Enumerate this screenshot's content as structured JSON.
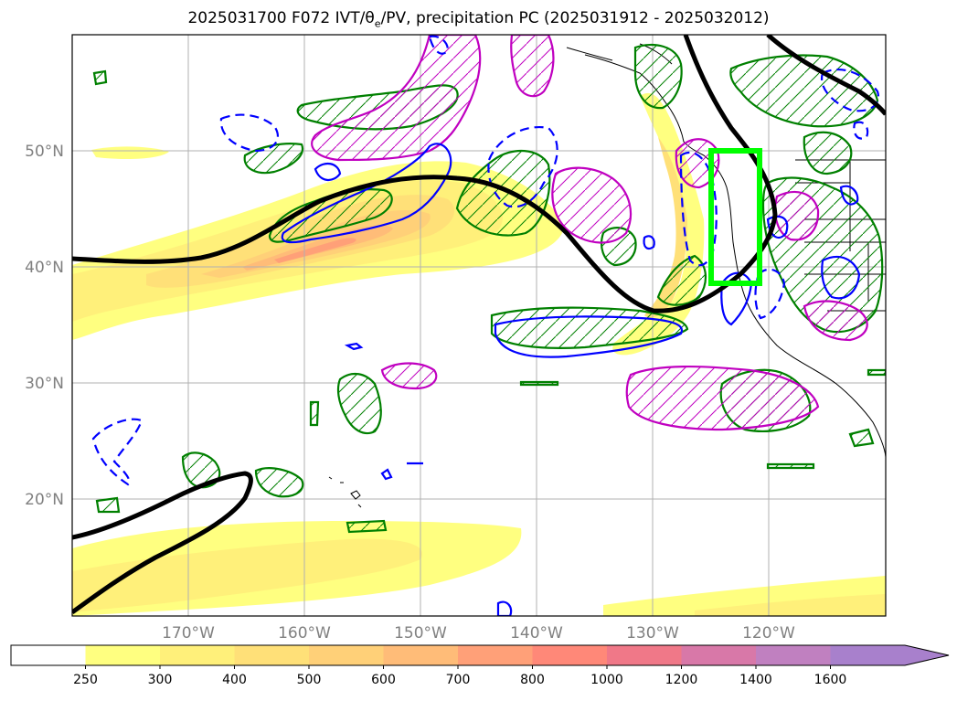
{
  "title": {
    "prefix": "2025031700 F072 IVT/",
    "theta_base": "θ",
    "theta_sub": "e",
    "suffix": "/PV, precipitation PC (2025031912 - 2025032012)"
  },
  "map": {
    "lat_labels": [
      "50°N",
      "40°N",
      "30°N",
      "20°N"
    ],
    "lon_labels": [
      "170°W",
      "160°W",
      "150°W",
      "140°W",
      "130°W",
      "120°W"
    ],
    "grid": true,
    "colors": {
      "pv_contour": "#000000",
      "precip_positive": "#008000",
      "precip_negative": "#0000ff",
      "pv_anomaly": "#c000c0",
      "target_box": "#00ff00",
      "coastline": "#000000"
    }
  },
  "colorbar": {
    "labels": [
      "250",
      "300",
      "400",
      "500",
      "600",
      "700",
      "800",
      "1000",
      "1200",
      "1400",
      "1600"
    ],
    "colors": [
      "#ffffff",
      "#ffff80",
      "#fff07a",
      "#ffe078",
      "#ffd078",
      "#ffbc78",
      "#ffa078",
      "#ff8878",
      "#f07888",
      "#d878a8",
      "#c080c0",
      "#a880cc"
    ],
    "extend": "max"
  }
}
